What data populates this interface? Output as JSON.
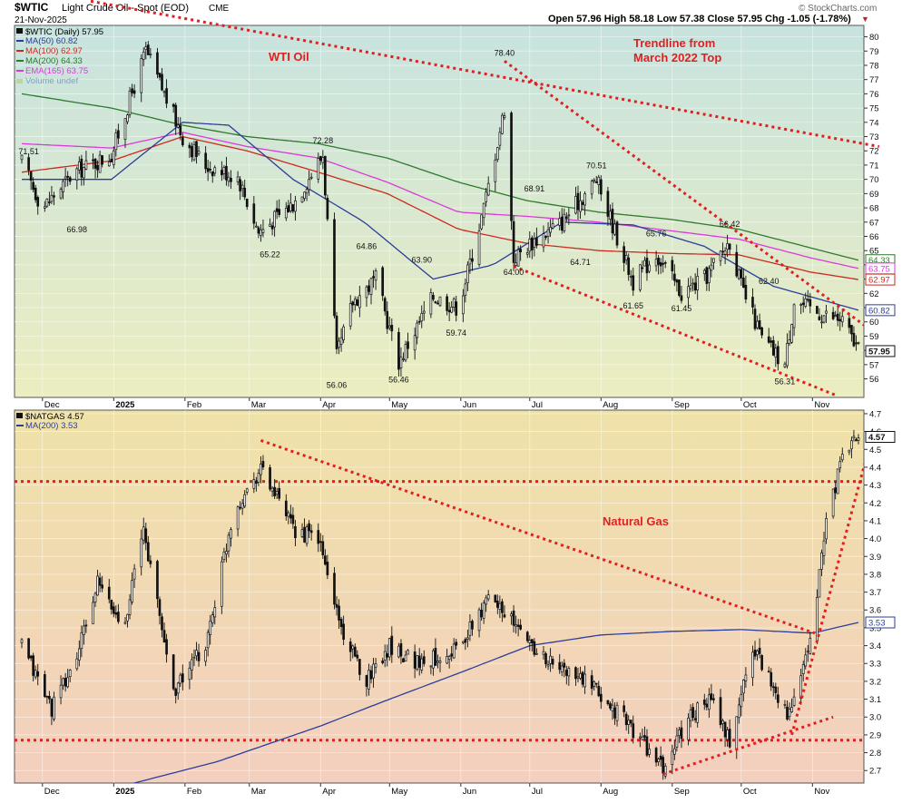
{
  "header": {
    "symbol": "$WTIC",
    "name": "Light Crude Oil - Spot (EOD)",
    "exchange": "CME",
    "date": "21-Nov-2025",
    "quote": "Open 57.96  High 58.18  Low 57.38  Close 57.95  Chg -1.05 (-1.78%)",
    "quote_arrow": "▼",
    "credit": "© StockCharts.com"
  },
  "colors": {
    "oil_bg_top": "#c7e3df",
    "oil_bg_bottom": "#ecedc0",
    "gas_bg_top": "#efe2a8",
    "gas_bg_bottom": "#f3cfbf",
    "ma50": "#2b3d9b",
    "ma100": "#cc2a1e",
    "ma200": "#2d7a2d",
    "ema165": "#d93ad9",
    "trend": "#e02020",
    "candle": "#111111",
    "last_label_bg": "#ffffff"
  },
  "chart_data": [
    {
      "type": "candlestick",
      "panel": "oil",
      "legend": [
        "$WTIC (Daily) 57.95",
        "MA(50) 60.82",
        "MA(100) 62.97",
        "MA(200) 64.33",
        "EMA(165) 63.75",
        "Volume undef"
      ],
      "annotations": [
        "WTI Oil",
        "Trendline from",
        "March 2022 Top"
      ],
      "price_labels": [
        "71.51",
        "66.98",
        "72.28",
        "65.22",
        "78.40",
        "64.86",
        "63.90",
        "56.06",
        "56.46",
        "59.74",
        "64.00",
        "68.91",
        "64.71",
        "70.51",
        "61.65",
        "65.76",
        "61.45",
        "66.42",
        "62.40",
        "56.31"
      ],
      "price_label_values": [
        71.51,
        66.98,
        72.28,
        65.22,
        78.4,
        64.86,
        63.9,
        56.06,
        56.46,
        59.74,
        64.0,
        68.91,
        64.71,
        70.51,
        61.65,
        65.76,
        61.45,
        66.42,
        62.4,
        56.31
      ],
      "y_ticks": [
        "80",
        "79",
        "78",
        "77",
        "76",
        "75",
        "74",
        "73",
        "72",
        "71",
        "70",
        "69",
        "68",
        "67",
        "66",
        "65",
        "64",
        "63",
        "62",
        "61",
        "60",
        "59",
        "58",
        "57",
        "56"
      ],
      "ylim": [
        54.7,
        80.8
      ],
      "last_values": {
        "close": "57.95",
        "ma50": "60.82",
        "ma100": "62.97",
        "ma200": "64.33",
        "ema165": "63.75"
      },
      "close_anchors": [
        [
          "2024-11-22",
          71.2
        ],
        [
          "2024-12-01",
          68.0
        ],
        [
          "2024-12-15",
          70.5
        ],
        [
          "2024-12-31",
          71.7
        ],
        [
          "2025-01-15",
          79.0
        ],
        [
          "2025-01-31",
          73.0
        ],
        [
          "2025-02-10",
          71.0
        ],
        [
          "2025-02-24",
          70.2
        ],
        [
          "2025-03-05",
          66.3
        ],
        [
          "2025-03-20",
          68.3
        ],
        [
          "2025-04-02",
          71.7
        ],
        [
          "2025-04-08",
          57.5
        ],
        [
          "2025-04-15",
          61.4
        ],
        [
          "2025-04-25",
          63.0
        ],
        [
          "2025-05-05",
          57.2
        ],
        [
          "2025-05-20",
          61.8
        ],
        [
          "2025-05-31",
          61.0
        ],
        [
          "2025-06-11",
          68.0
        ],
        [
          "2025-06-20",
          75.0
        ],
        [
          "2025-06-24",
          64.4
        ],
        [
          "2025-07-01",
          65.5
        ],
        [
          "2025-07-15",
          67.0
        ],
        [
          "2025-07-30",
          70.0
        ],
        [
          "2025-08-15",
          62.8
        ],
        [
          "2025-08-25",
          64.8
        ],
        [
          "2025-09-05",
          62.0
        ],
        [
          "2025-09-15",
          63.0
        ],
        [
          "2025-09-26",
          65.7
        ],
        [
          "2025-10-01",
          62.5
        ],
        [
          "2025-10-10",
          58.8
        ],
        [
          "2025-10-20",
          57.0
        ],
        [
          "2025-10-24",
          61.5
        ],
        [
          "2025-11-04",
          60.6
        ],
        [
          "2025-11-14",
          60.1
        ],
        [
          "2025-11-21",
          57.95
        ]
      ],
      "ma50_anchors": [
        [
          "2024-11-22",
          70.0
        ],
        [
          "2024-12-31",
          70.0
        ],
        [
          "2025-01-31",
          74.0
        ],
        [
          "2025-02-20",
          73.8
        ],
        [
          "2025-03-20",
          70.0
        ],
        [
          "2025-04-20",
          67.0
        ],
        [
          "2025-05-20",
          63.0
        ],
        [
          "2025-06-15",
          64.0
        ],
        [
          "2025-07-15",
          67.0
        ],
        [
          "2025-08-15",
          66.8
        ],
        [
          "2025-09-15",
          65.3
        ],
        [
          "2025-10-15",
          62.5
        ],
        [
          "2025-11-21",
          60.82
        ]
      ],
      "ma100_anchors": [
        [
          "2024-11-22",
          70.5
        ],
        [
          "2024-12-31",
          71.3
        ],
        [
          "2025-01-31",
          73.0
        ],
        [
          "2025-02-28",
          72.0
        ],
        [
          "2025-03-31",
          70.5
        ],
        [
          "2025-04-30",
          69.0
        ],
        [
          "2025-05-31",
          66.5
        ],
        [
          "2025-06-30",
          65.5
        ],
        [
          "2025-07-31",
          65.0
        ],
        [
          "2025-08-31",
          64.8
        ],
        [
          "2025-09-30",
          64.7
        ],
        [
          "2025-10-31",
          63.5
        ],
        [
          "2025-11-21",
          62.97
        ]
      ],
      "ma200_anchors": [
        [
          "2024-11-22",
          76.0
        ],
        [
          "2024-12-31",
          75.0
        ],
        [
          "2025-01-31",
          73.8
        ],
        [
          "2025-02-28",
          73.0
        ],
        [
          "2025-03-31",
          72.5
        ],
        [
          "2025-04-30",
          71.5
        ],
        [
          "2025-05-31",
          69.8
        ],
        [
          "2025-06-30",
          68.5
        ],
        [
          "2025-07-31",
          67.7
        ],
        [
          "2025-08-31",
          67.2
        ],
        [
          "2025-09-30",
          66.5
        ],
        [
          "2025-10-31",
          65.2
        ],
        [
          "2025-11-21",
          64.33
        ]
      ],
      "ema165_anchors": [
        [
          "2024-11-22",
          72.5
        ],
        [
          "2024-12-31",
          72.2
        ],
        [
          "2025-01-31",
          73.3
        ],
        [
          "2025-02-28",
          72.3
        ],
        [
          "2025-03-31",
          71.5
        ],
        [
          "2025-04-30",
          69.8
        ],
        [
          "2025-05-31",
          67.7
        ],
        [
          "2025-06-30",
          67.4
        ],
        [
          "2025-07-31",
          67.0
        ],
        [
          "2025-08-31",
          66.4
        ],
        [
          "2025-09-30",
          65.8
        ],
        [
          "2025-10-31",
          64.5
        ],
        [
          "2025-11-21",
          63.75
        ]
      ],
      "trendlines": [
        {
          "from": [
            "2024-12-22",
            82.5
          ],
          "to": [
            "2025-11-30",
            72.3
          ]
        },
        {
          "from": [
            "2025-06-20",
            78.3
          ],
          "to": [
            "2025-11-30",
            59.0
          ]
        },
        {
          "from": [
            "2025-06-24",
            63.9
          ],
          "to": [
            "2025-11-12",
            54.8
          ]
        }
      ]
    },
    {
      "type": "candlestick",
      "panel": "natgas",
      "legend": [
        "$NATGAS 4.57",
        "MA(200) 3.53"
      ],
      "annotations": [
        "Natural Gas"
      ],
      "y_ticks": [
        "4.7",
        "4.6",
        "4.5",
        "4.4",
        "4.3",
        "4.2",
        "4.1",
        "4.0",
        "3.9",
        "3.8",
        "3.7",
        "3.6",
        "3.5",
        "3.4",
        "3.3",
        "3.2",
        "3.1",
        "3.0",
        "2.9",
        "2.8",
        "2.7"
      ],
      "ylim": [
        2.63,
        4.72
      ],
      "last_values": {
        "close": "4.57",
        "ma200": "3.53"
      },
      "close_anchors": [
        [
          "2024-11-22",
          3.4
        ],
        [
          "2024-12-05",
          3.05
        ],
        [
          "2024-12-15",
          3.3
        ],
        [
          "2024-12-25",
          3.75
        ],
        [
          "2025-01-05",
          3.5
        ],
        [
          "2025-01-14",
          4.05
        ],
        [
          "2025-01-27",
          3.15
        ],
        [
          "2025-02-10",
          3.4
        ],
        [
          "2025-02-22",
          4.15
        ],
        [
          "2025-03-06",
          4.4
        ],
        [
          "2025-03-20",
          4.05
        ],
        [
          "2025-03-31",
          4.0
        ],
        [
          "2025-04-10",
          3.5
        ],
        [
          "2025-04-20",
          3.2
        ],
        [
          "2025-05-01",
          3.4
        ],
        [
          "2025-05-15",
          3.3
        ],
        [
          "2025-06-01",
          3.4
        ],
        [
          "2025-06-15",
          3.7
        ],
        [
          "2025-06-25",
          3.5
        ],
        [
          "2025-07-10",
          3.3
        ],
        [
          "2025-07-25",
          3.2
        ],
        [
          "2025-08-10",
          3.0
        ],
        [
          "2025-08-20",
          2.85
        ],
        [
          "2025-08-28",
          2.7
        ],
        [
          "2025-09-08",
          3.0
        ],
        [
          "2025-09-18",
          3.1
        ],
        [
          "2025-09-26",
          2.85
        ],
        [
          "2025-10-06",
          3.4
        ],
        [
          "2025-10-14",
          3.2
        ],
        [
          "2025-10-22",
          3.0
        ],
        [
          "2025-10-31",
          3.4
        ],
        [
          "2025-11-07",
          4.1
        ],
        [
          "2025-11-13",
          4.4
        ],
        [
          "2025-11-18",
          4.55
        ],
        [
          "2025-11-21",
          4.57
        ]
      ],
      "ma200_anchors": [
        [
          "2025-01-01",
          2.6
        ],
        [
          "2025-02-15",
          2.75
        ],
        [
          "2025-04-01",
          2.95
        ],
        [
          "2025-05-01",
          3.1
        ],
        [
          "2025-06-01",
          3.25
        ],
        [
          "2025-07-01",
          3.4
        ],
        [
          "2025-08-01",
          3.46
        ],
        [
          "2025-09-01",
          3.48
        ],
        [
          "2025-10-01",
          3.49
        ],
        [
          "2025-11-01",
          3.47
        ],
        [
          "2025-11-21",
          3.53
        ]
      ],
      "hlines": [
        4.32,
        2.87
      ],
      "trendlines": [
        {
          "from": [
            "2025-03-06",
            4.55
          ],
          "to": [
            "2025-11-02",
            3.47
          ]
        },
        {
          "from": [
            "2025-08-28",
            2.68
          ],
          "to": [
            "2025-11-10",
            3.0
          ]
        },
        {
          "from": [
            "2025-10-23",
            2.9
          ],
          "to": [
            "2025-11-25",
            4.48
          ]
        }
      ]
    }
  ],
  "x_axis": {
    "labels": [
      "Dec",
      "2025",
      "Feb",
      "Mar",
      "Apr",
      "May",
      "Jun",
      "Jul",
      "Aug",
      "Sep",
      "Oct",
      "Nov"
    ],
    "dates": [
      "2024-12-01",
      "2025-01-01",
      "2025-02-01",
      "2025-03-01",
      "2025-04-01",
      "2025-05-01",
      "2025-06-01",
      "2025-07-01",
      "2025-08-01",
      "2025-09-01",
      "2025-10-01",
      "2025-11-01"
    ]
  }
}
